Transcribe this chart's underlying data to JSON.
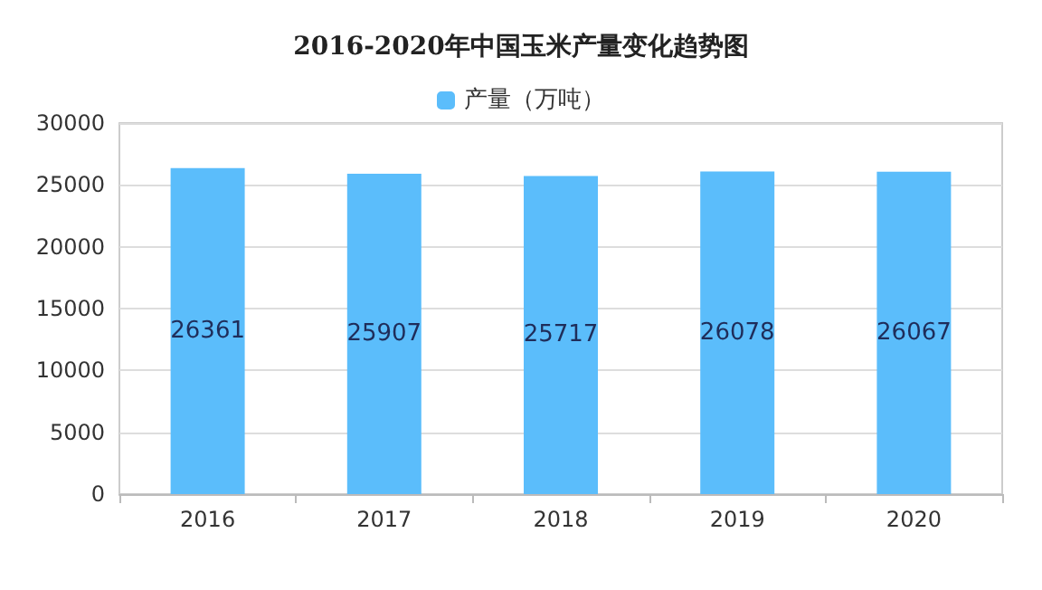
{
  "chart_data": {
    "type": "bar",
    "title": "2016-2020年中国玉米产量变化趋势图",
    "categories": [
      "2016",
      "2017",
      "2018",
      "2019",
      "2020"
    ],
    "series": [
      {
        "name": "产量（万吨）",
        "color": "#5bbdfb",
        "values": [
          26361,
          25907,
          25717,
          26078,
          26067
        ]
      }
    ],
    "ylim": [
      0,
      30000
    ],
    "yticks": [
      0,
      5000,
      10000,
      15000,
      20000,
      25000,
      30000
    ],
    "grid": "y",
    "legend": "top",
    "data_labels": true
  }
}
